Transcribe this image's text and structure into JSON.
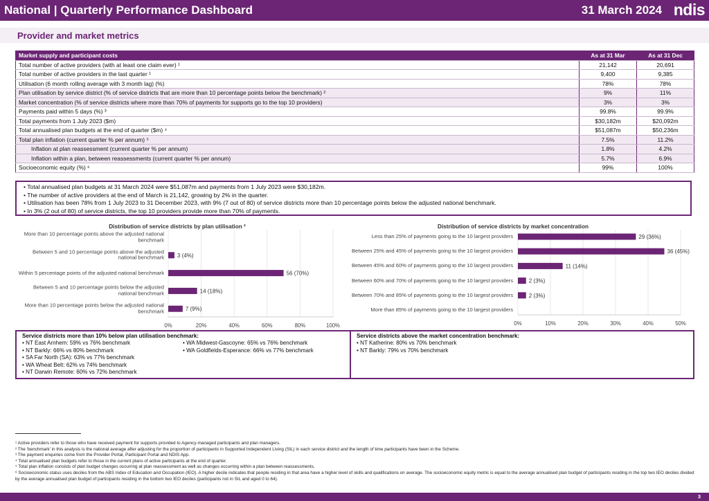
{
  "header": {
    "title": "National | Quarterly Performance Dashboard",
    "date": "31 March 2024",
    "logo": "ndis"
  },
  "section_title": "Provider and market metrics",
  "table": {
    "columns": [
      "Market supply and participant costs",
      "As at 31 Mar",
      "As at 31 Dec"
    ],
    "rows": [
      [
        "Total number of active providers (with at least one claim ever) ¹",
        "21,142",
        "20,691"
      ],
      [
        "Total number of active providers in the last quarter ¹",
        "9,400",
        "9,385"
      ],
      [
        "Utilisation (6 month rolling average with 3 month lag) (%)",
        "78%",
        "78%"
      ],
      [
        "Plan utilisation by service district (% of service districts that are more than 10 percentage points below the benchmark) ²",
        "9%",
        "11%"
      ],
      [
        "Market concentration (% of service districts where more than 70% of payments for supports go to the top 10 providers)",
        "3%",
        "3%"
      ],
      [
        "Payments paid within 5 days (%) ³",
        "99.8%",
        "99.9%"
      ],
      [
        "Total payments from 1 July 2023 ($m)",
        "$30,182m",
        "$20,092m"
      ],
      [
        "Total annualised plan budgets at the end of quarter ($m) ⁴",
        "$51,087m",
        "$50,236m"
      ],
      [
        "Total plan inflation (current quarter % per annum) ⁵",
        "7.5%",
        "11.2%"
      ],
      [
        "Inflation at plan reassessment (current quarter % per annum)",
        "1.8%",
        "4.2%"
      ],
      [
        "Inflation within a plan, between reassessments (current quarter % per annum)",
        "5.7%",
        "6.9%"
      ],
      [
        "Socioeconomic equity (%) ⁶",
        "99%",
        "100%"
      ]
    ]
  },
  "bullets": [
    "Total annualised plan budgets at 31 March 2024 were $51,087m and payments from 1 July 2023 were $30,182m.",
    "The number of active providers at the end of March is 21,142, growing by 2% in the quarter.",
    "Utilisation has been 78% from 1 July 2023 to 31 December 2023, with 9% (7 out of 80) of service districts more than 10 percentage points below the adjusted national benchmark.",
    "In 3% (2 out of 80) of service districts, the top 10 providers provide more than 70% of payments."
  ],
  "chart_data": [
    {
      "type": "bar",
      "orientation": "horizontal",
      "title": "Distribution of service districts by plan utilisation ²",
      "categories": [
        "More than 10 percentage points above the adjusted national benchmark",
        "Between 5 and 10 percentage points above the adjusted national benchmark",
        "Within 5 percentage points of the adjusted national benchmark",
        "Between 5 and 10 percentage points below the adjusted national benchmark",
        "More than 10 percentage points below the adjusted national benchmark"
      ],
      "values": [
        0,
        3.75,
        70,
        17.5,
        8.75
      ],
      "value_labels": [
        null,
        "3 (4%)",
        "56 (70%)",
        "14 (18%)",
        "7 (9%)"
      ],
      "color": "#6b2574",
      "grid": true,
      "xlim": [
        0,
        100
      ],
      "xticks": [
        {
          "value": 0,
          "label": "0%"
        },
        {
          "value": 20,
          "label": "20%"
        },
        {
          "value": 40,
          "label": "40%"
        },
        {
          "value": 60,
          "label": "60%"
        },
        {
          "value": 80,
          "label": "80%"
        },
        {
          "value": 100,
          "label": "100%"
        }
      ]
    },
    {
      "type": "bar",
      "orientation": "horizontal",
      "title": "Distribution of service districts by market concentration",
      "categories": [
        "Less than 25% of payments going to the 10 largest providers",
        "Between 25% and 45% of payments going to the 10 largest providers",
        "Between 45% and 60% of payments going to the 10 largest providers",
        "Between 60% and 70% of payments going to the 10 largest providers",
        "Between 70% and 85% of payments going to the 10 largest providers",
        "More than 85% of payments going to the 10 largest providers"
      ],
      "values": [
        36.25,
        45,
        13.75,
        2.5,
        2.5,
        0
      ],
      "value_labels": [
        "29 (36%)",
        "36 (45%)",
        "11 (14%)",
        "2 (3%)",
        "2 (3%)",
        null
      ],
      "color": "#6b2574",
      "grid": true,
      "xlim": [
        0,
        50
      ],
      "xticks": [
        {
          "value": 0,
          "label": "0%"
        },
        {
          "value": 10,
          "label": "10%"
        },
        {
          "value": 20,
          "label": "20%"
        },
        {
          "value": 30,
          "label": "30%"
        },
        {
          "value": 40,
          "label": "40%"
        },
        {
          "value": 50,
          "label": "50%"
        }
      ]
    }
  ],
  "boxes": [
    {
      "title": "Service districts more than 10% below plan utilisation benchmark:",
      "columns": [
        [
          "NT East Arnhem: 59% vs 76% benchmark",
          "NT Barkly: 66% vs 80% benchmark",
          "SA Far North (SA): 63% vs 77% benchmark",
          "WA Wheat Belt: 62% vs 74% benchmark",
          "NT Darwin Remote: 60% vs 72% benchmark"
        ],
        [
          "WA Midwest-Gascoyne: 65% vs 76% benchmark",
          "WA Goldfields-Esperance: 66% vs 77% benchmark"
        ]
      ]
    },
    {
      "title": "Service districts above the market concentration benchmark:",
      "columns": [
        [
          "NT Katherine: 80% vs 70% benchmark",
          "NT Barkly: 79% vs 70% benchmark"
        ]
      ]
    }
  ],
  "footnotes": [
    "¹ Active providers refer to those who have received payment for supports provided to Agency-managed participants and plan managers.",
    "² The ‘benchmark’ in this analysis is the national average after adjusting for the proportion of participants in Supported Independent Living (SIL) in each service district and the length of time participants have been in the Scheme.",
    "³ The payment enquiries come from the Provider Portal, Participant Portal and NDIS App.",
    "⁴ Total annualised plan budgets refer to those in the current plans of active participants at the end of quarter.",
    "⁵ Total plan inflation consists of plan budget changes occurring at plan reassessment as well as changes occurring within a plan between reassessments.",
    "⁶ Socioeconomic status uses deciles from the ABS Index of Education and Occupation (IEO). A higher decile indicates that people residing in that area have a higher level of skills and qualifications on average. The socioeconomic equity metric is equal to the average annualised plan budget of participants residing in the top two IEO deciles divided by the average annualised plan budget of participants residing in the bottom two IEO deciles (participants not in SIL and aged 0 to 64)."
  ],
  "page_number": "3"
}
